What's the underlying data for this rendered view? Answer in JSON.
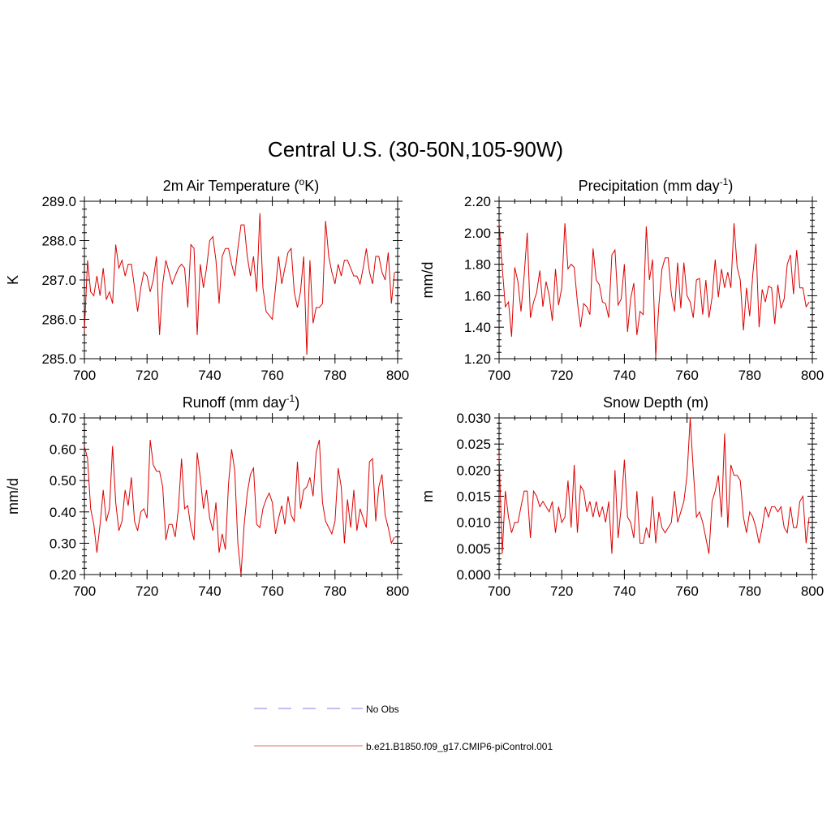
{
  "figure_title": "Central U.S. (30-50N,105-90W)",
  "legend": {
    "entries": [
      {
        "label": "No Obs",
        "style": "dashed",
        "color": "#9999ee"
      },
      {
        "label": "b.e21.B1850.f09_g17.CMIP6-piControl.001",
        "style": "solid",
        "color": "#ee8888"
      }
    ]
  },
  "line_color": "#dd0000",
  "chart_data": [
    {
      "type": "line",
      "title_main": "2m Air Temperature (",
      "title_sup": "o",
      "title_tail": "K)",
      "ylabel": "K",
      "xlim": [
        700,
        800
      ],
      "ylim": [
        285.0,
        289.0
      ],
      "yticks": [
        285.0,
        286.0,
        287.0,
        288.0,
        289.0
      ],
      "ytick_labels": [
        "285.0",
        "286.0",
        "287.0",
        "288.0",
        "289.0"
      ],
      "xticks": [
        700,
        720,
        740,
        760,
        780,
        800
      ],
      "xtick_labels": [
        "700",
        "720",
        "740",
        "760",
        "780",
        "800"
      ],
      "series": [
        {
          "name": "b.e21.B1850.f09_g17.CMIP6-piControl.001",
          "x_start": 700,
          "x_step": 1,
          "values": [
            285.7,
            287.5,
            286.7,
            286.6,
            287.1,
            286.6,
            287.3,
            286.5,
            286.7,
            286.4,
            287.9,
            287.3,
            287.5,
            287.1,
            287.4,
            287.4,
            286.8,
            286.2,
            286.8,
            287.2,
            287.1,
            286.7,
            287.0,
            287.6,
            285.6,
            286.9,
            287.5,
            287.2,
            286.9,
            287.1,
            287.3,
            287.4,
            287.3,
            286.3,
            287.9,
            287.8,
            285.6,
            287.4,
            286.8,
            287.3,
            288.0,
            288.1,
            287.5,
            286.4,
            287.6,
            287.8,
            287.8,
            287.4,
            287.1,
            287.8,
            288.4,
            288.4,
            287.6,
            287.1,
            287.6,
            286.7,
            288.7,
            286.8,
            286.2,
            286.1,
            286.0,
            286.8,
            287.6,
            286.9,
            287.3,
            287.7,
            287.8,
            286.7,
            286.3,
            286.7,
            287.6,
            285.1,
            287.5,
            285.9,
            286.3,
            286.3,
            286.4,
            288.5,
            287.6,
            287.2,
            286.9,
            287.4,
            287.1,
            287.5,
            287.5,
            287.3,
            287.1,
            287.1,
            286.9,
            287.3,
            287.8,
            287.2,
            286.9,
            287.6,
            287.6,
            287.2,
            287.0,
            287.7,
            286.4,
            287.2
          ]
        }
      ]
    },
    {
      "type": "line",
      "title_main": "Precipitation (mm day",
      "title_sup": "-1",
      "title_tail": ")",
      "ylabel": "mm/d",
      "xlim": [
        700,
        800
      ],
      "ylim": [
        1.2,
        2.2
      ],
      "yticks": [
        1.2,
        1.4,
        1.6,
        1.8,
        2.0,
        2.2
      ],
      "ytick_labels": [
        "1.20",
        "1.40",
        "1.60",
        "1.80",
        "2.00",
        "2.20"
      ],
      "xticks": [
        700,
        720,
        740,
        760,
        780,
        800
      ],
      "xtick_labels": [
        "700",
        "720",
        "740",
        "760",
        "780",
        "800"
      ],
      "series": [
        {
          "name": "b.e21.B1850.f09_g17.CMIP6-piControl.001",
          "x_start": 700,
          "x_step": 1,
          "values": [
            2.06,
            1.78,
            1.53,
            1.56,
            1.34,
            1.78,
            1.69,
            1.5,
            1.73,
            2.0,
            1.46,
            1.56,
            1.62,
            1.76,
            1.53,
            1.69,
            1.6,
            1.44,
            1.77,
            1.54,
            1.65,
            2.06,
            1.77,
            1.8,
            1.78,
            1.56,
            1.4,
            1.55,
            1.53,
            1.48,
            1.9,
            1.7,
            1.67,
            1.56,
            1.55,
            1.46,
            1.86,
            1.89,
            1.54,
            1.58,
            1.8,
            1.37,
            1.58,
            1.68,
            1.35,
            1.5,
            1.48,
            2.04,
            1.7,
            1.83,
            1.21,
            1.54,
            1.77,
            1.84,
            1.84,
            1.61,
            1.5,
            1.81,
            1.52,
            1.81,
            1.6,
            1.56,
            1.46,
            1.7,
            1.71,
            1.48,
            1.7,
            1.46,
            1.59,
            1.83,
            1.59,
            1.77,
            1.65,
            1.75,
            1.65,
            2.06,
            1.78,
            1.7,
            1.38,
            1.65,
            1.47,
            1.74,
            1.93,
            1.4,
            1.64,
            1.56,
            1.66,
            1.65,
            1.42,
            1.67,
            1.52,
            1.58,
            1.8,
            1.86,
            1.61,
            1.89,
            1.65,
            1.65,
            1.53,
            1.56
          ]
        }
      ]
    },
    {
      "type": "line",
      "title_main": "Runoff (mm day",
      "title_sup": "-1",
      "title_tail": ")",
      "ylabel": "mm/d",
      "xlim": [
        700,
        800
      ],
      "ylim": [
        0.2,
        0.7
      ],
      "yticks": [
        0.2,
        0.3,
        0.4,
        0.5,
        0.6,
        0.7
      ],
      "ytick_labels": [
        "0.20",
        "0.30",
        "0.40",
        "0.50",
        "0.60",
        "0.70"
      ],
      "xticks": [
        700,
        720,
        740,
        760,
        780,
        800
      ],
      "xtick_labels": [
        "700",
        "720",
        "740",
        "760",
        "780",
        "800"
      ],
      "series": [
        {
          "name": "b.e21.B1850.f09_g17.CMIP6-piControl.001",
          "x_start": 700,
          "x_step": 1,
          "values": [
            0.61,
            0.57,
            0.41,
            0.36,
            0.27,
            0.36,
            0.47,
            0.37,
            0.41,
            0.61,
            0.43,
            0.34,
            0.37,
            0.47,
            0.42,
            0.51,
            0.37,
            0.34,
            0.4,
            0.41,
            0.38,
            0.63,
            0.55,
            0.53,
            0.53,
            0.48,
            0.31,
            0.36,
            0.36,
            0.32,
            0.41,
            0.57,
            0.41,
            0.42,
            0.35,
            0.31,
            0.59,
            0.51,
            0.41,
            0.47,
            0.38,
            0.34,
            0.43,
            0.27,
            0.33,
            0.28,
            0.49,
            0.6,
            0.53,
            0.3,
            0.2,
            0.36,
            0.46,
            0.52,
            0.54,
            0.36,
            0.35,
            0.41,
            0.44,
            0.46,
            0.43,
            0.33,
            0.38,
            0.42,
            0.36,
            0.45,
            0.39,
            0.37,
            0.56,
            0.41,
            0.47,
            0.48,
            0.51,
            0.45,
            0.59,
            0.63,
            0.43,
            0.37,
            0.35,
            0.33,
            0.37,
            0.54,
            0.48,
            0.3,
            0.44,
            0.35,
            0.47,
            0.34,
            0.41,
            0.38,
            0.35,
            0.56,
            0.57,
            0.37,
            0.48,
            0.52,
            0.39,
            0.35,
            0.3,
            0.32
          ]
        }
      ]
    },
    {
      "type": "line",
      "title_main": "Snow Depth (m)",
      "title_sup": "",
      "title_tail": "",
      "ylabel": "m",
      "xlim": [
        700,
        800
      ],
      "ylim": [
        0.0,
        0.03
      ],
      "yticks": [
        0.0,
        0.005,
        0.01,
        0.015,
        0.02,
        0.025,
        0.03
      ],
      "ytick_labels": [
        "0.000",
        "0.005",
        "0.010",
        "0.015",
        "0.020",
        "0.025",
        "0.030"
      ],
      "xticks": [
        700,
        720,
        740,
        760,
        780,
        800
      ],
      "xtick_labels": [
        "700",
        "720",
        "740",
        "760",
        "780",
        "800"
      ],
      "series": [
        {
          "name": "b.e21.B1850.f09_g17.CMIP6-piControl.001",
          "x_start": 700,
          "x_step": 1,
          "values": [
            0.023,
            0.004,
            0.016,
            0.011,
            0.008,
            0.01,
            0.01,
            0.013,
            0.016,
            0.016,
            0.007,
            0.016,
            0.015,
            0.013,
            0.014,
            0.013,
            0.012,
            0.014,
            0.008,
            0.013,
            0.01,
            0.011,
            0.018,
            0.009,
            0.021,
            0.008,
            0.017,
            0.016,
            0.012,
            0.014,
            0.011,
            0.014,
            0.011,
            0.013,
            0.01,
            0.014,
            0.004,
            0.02,
            0.007,
            0.013,
            0.022,
            0.011,
            0.01,
            0.007,
            0.016,
            0.006,
            0.006,
            0.009,
            0.007,
            0.015,
            0.006,
            0.012,
            0.009,
            0.008,
            0.009,
            0.01,
            0.016,
            0.01,
            0.012,
            0.014,
            0.019,
            0.03,
            0.02,
            0.011,
            0.012,
            0.01,
            0.007,
            0.004,
            0.014,
            0.016,
            0.019,
            0.011,
            0.027,
            0.009,
            0.021,
            0.019,
            0.019,
            0.018,
            0.011,
            0.008,
            0.012,
            0.011,
            0.009,
            0.006,
            0.009,
            0.013,
            0.011,
            0.013,
            0.013,
            0.012,
            0.013,
            0.009,
            0.008,
            0.013,
            0.009,
            0.009,
            0.014,
            0.015,
            0.006,
            0.011
          ]
        }
      ]
    }
  ]
}
